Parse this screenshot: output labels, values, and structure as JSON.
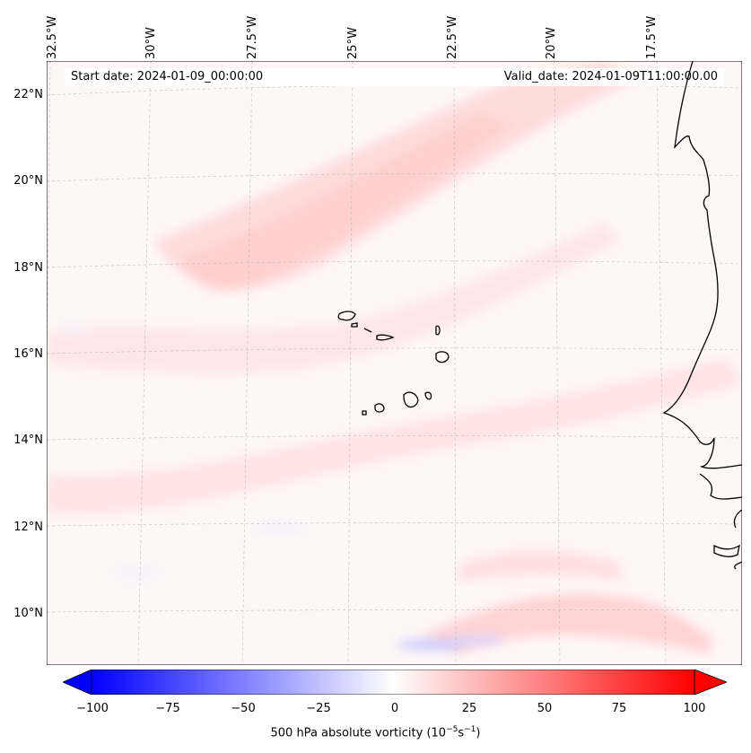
{
  "header": {
    "start_date": "Start date: 2024-01-09_00:00:00",
    "valid_date": "Valid_date: 2024-01-09T11:00:00.00"
  },
  "longitude_labels": [
    "32.5°W",
    "30°W",
    "27.5°W",
    "25°W",
    "22.5°W",
    "20°W",
    "17.5°W"
  ],
  "latitude_labels": [
    "22°N",
    "20°N",
    "18°N",
    "16°N",
    "14°N",
    "12°N",
    "10°N"
  ],
  "colorbar": {
    "ticks": [
      "−100",
      "−75",
      "−50",
      "−25",
      "0",
      "25",
      "50",
      "75",
      "100"
    ],
    "min": -100,
    "max": 100,
    "colors": {
      "negative": "#0000ff",
      "zero": "#ffffff",
      "positive": "#ff0000"
    },
    "label_main": "500 hPa absolute vorticity (10",
    "label_sup1": "−5",
    "label_mid": "s",
    "label_sup2": "−1",
    "label_end": ")"
  },
  "map": {
    "coastline_color": "#000000",
    "grid_color": "#bbbbbb"
  }
}
